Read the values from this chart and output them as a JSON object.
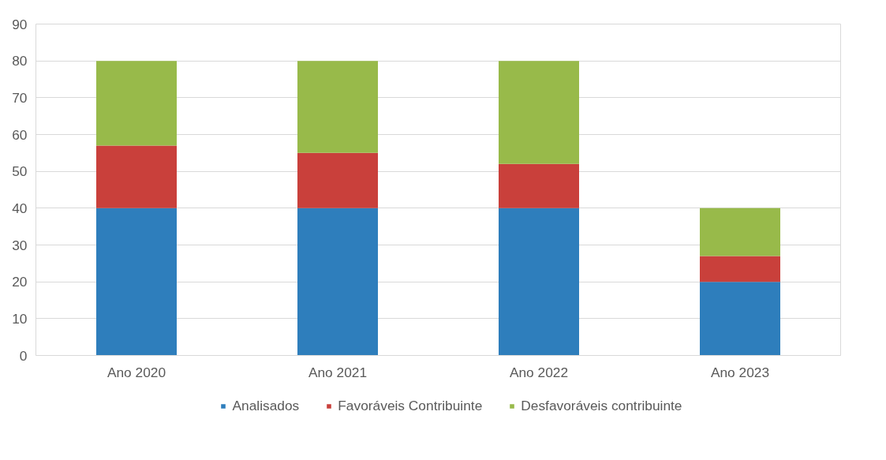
{
  "chart_data": {
    "type": "bar",
    "stacked": true,
    "categories": [
      "Ano 2020",
      "Ano 2021",
      "Ano 2022",
      "Ano 2023"
    ],
    "series": [
      {
        "name": "Analisados",
        "color": "#2e7ebc",
        "values": [
          40,
          40,
          40,
          20
        ]
      },
      {
        "name": "Favoráveis Contribuinte",
        "color": "#c9403b",
        "values": [
          17,
          15,
          12,
          7
        ]
      },
      {
        "name": "Desfavoráveis contribuinte",
        "color": "#98ba4a",
        "values": [
          23,
          25,
          28,
          13
        ]
      }
    ],
    "ylim": [
      0,
      90
    ],
    "yticks": [
      0,
      10,
      20,
      30,
      40,
      50,
      60,
      70,
      80,
      90
    ],
    "grid": "y",
    "legend": "bottom"
  }
}
